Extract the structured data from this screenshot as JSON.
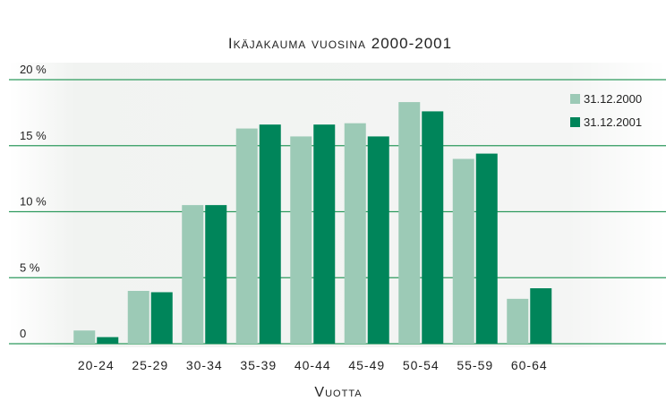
{
  "chart_data": {
    "type": "bar",
    "title": "Ikäjakauma vuosina 2000-2001",
    "x_label": "Vuotta",
    "categories": [
      "20-24",
      "25-29",
      "30-34",
      "35-39",
      "40-44",
      "45-49",
      "50-54",
      "55-59",
      "60-64"
    ],
    "series": [
      {
        "name": "31.12.2000",
        "color": "#9ccab6",
        "values": [
          1.0,
          4.0,
          10.5,
          16.3,
          15.7,
          16.7,
          18.3,
          14.0,
          3.4
        ]
      },
      {
        "name": "31.12.2001",
        "color": "#00855a",
        "values": [
          0.5,
          3.9,
          10.5,
          16.6,
          16.6,
          15.7,
          17.6,
          14.4,
          4.2
        ]
      }
    ],
    "ylim": [
      0,
      20
    ],
    "yticks": [
      0,
      {
        "value": 5,
        "label": "5 %"
      },
      {
        "value": 10,
        "label": "10 %"
      },
      {
        "value": 15,
        "label": "15 %"
      },
      {
        "value": 20,
        "label": "20 %"
      }
    ],
    "grid": true,
    "legend": "upper right"
  }
}
